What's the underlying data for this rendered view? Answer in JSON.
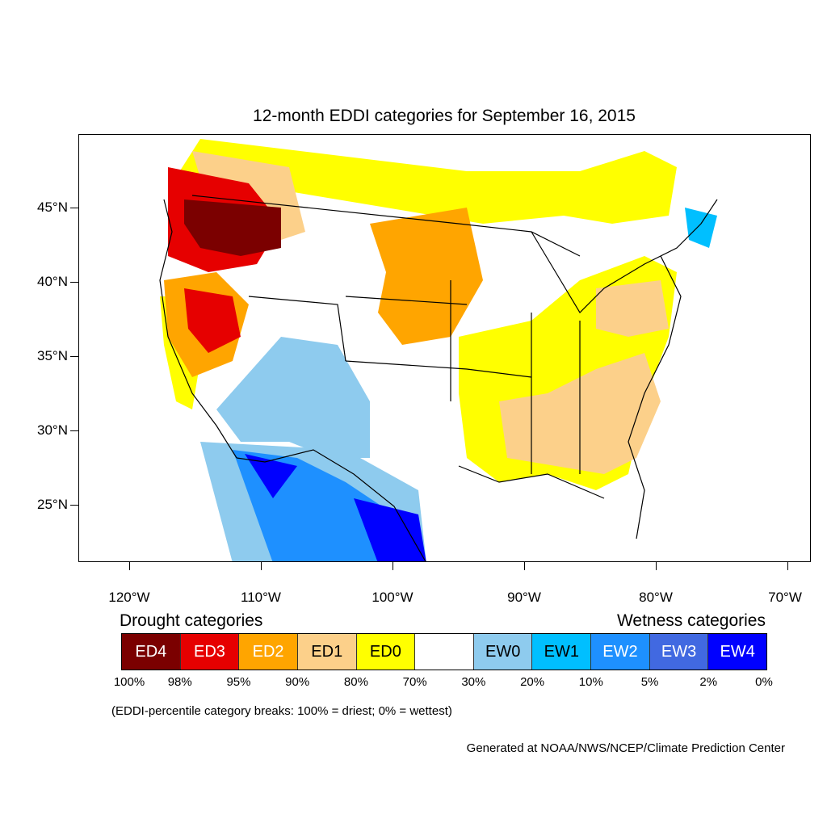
{
  "title": "12-month EDDI categories for September 16, 2015",
  "map": {
    "latitude_labels": [
      "45°N",
      "40°N",
      "35°N",
      "30°N",
      "25°N"
    ],
    "longitude_labels": [
      "120°W",
      "110°W",
      "100°W",
      "90°W",
      "80°W",
      "70°W"
    ],
    "category_colors": {
      "ED4": "#7b0000",
      "ED3": "#e60000",
      "ED2": "#ffa500",
      "ED1": "#fcd08a",
      "ED0": "#ffff00",
      "neutral": "#ffffff",
      "EW0": "#8ecbee",
      "EW1": "#00bfff",
      "EW2": "#1e90ff",
      "EW3": "#4169e1",
      "EW4": "#0000ff"
    }
  },
  "legend": {
    "drought_heading": "Drought categories",
    "wetness_heading": "Wetness categories",
    "categories": [
      {
        "label": "ED4",
        "color": "#7b0000",
        "text_color": "#ffffff"
      },
      {
        "label": "ED3",
        "color": "#e60000",
        "text_color": "#ffffff"
      },
      {
        "label": "ED2",
        "color": "#ffa500",
        "text_color": "#ffffff"
      },
      {
        "label": "ED1",
        "color": "#fcd08a",
        "text_color": "#000000"
      },
      {
        "label": "ED0",
        "color": "#ffff00",
        "text_color": "#000000"
      },
      {
        "label": "",
        "color": "#ffffff",
        "text_color": "#000000"
      },
      {
        "label": "EW0",
        "color": "#8ecbee",
        "text_color": "#000000"
      },
      {
        "label": "EW1",
        "color": "#00bfff",
        "text_color": "#000000"
      },
      {
        "label": "EW2",
        "color": "#1e90ff",
        "text_color": "#ffffff"
      },
      {
        "label": "EW3",
        "color": "#4169e1",
        "text_color": "#ffffff"
      },
      {
        "label": "EW4",
        "color": "#0000ff",
        "text_color": "#ffffff"
      }
    ],
    "breaks": [
      "100%",
      "98%",
      "95%",
      "90%",
      "80%",
      "70%",
      "30%",
      "20%",
      "10%",
      "5%",
      "2%",
      "0%"
    ],
    "note": "(EDDI-percentile category breaks: 100% = driest; 0% = wettest)"
  },
  "credit": "Generated at NOAA/NWS/NCEP/Climate Prediction Center"
}
